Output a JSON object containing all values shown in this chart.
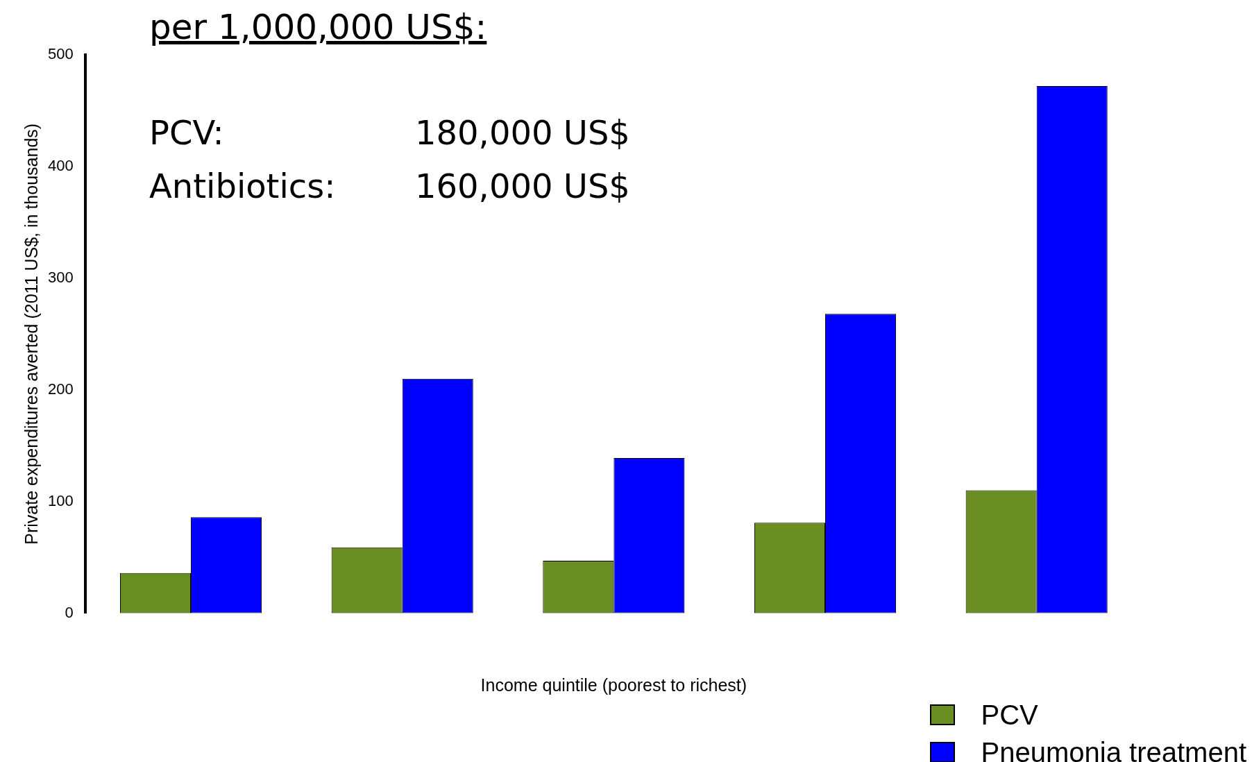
{
  "chart_data": {
    "type": "bar",
    "title": "per 1,000,000 US$:",
    "xlabel": "Income quintile (poorest to richest)",
    "ylabel": "Private expenditures averted (2011 US$, in thousands)",
    "categories": [
      null,
      null,
      null,
      null,
      null
    ],
    "series": [
      {
        "name": "PCV",
        "color": "#6b8e23",
        "values": [
          36,
          59,
          47,
          81,
          110
        ]
      },
      {
        "name": "Pneumonia treatment",
        "color": "#0000ff",
        "values": [
          86,
          210,
          139,
          268,
          472
        ]
      }
    ],
    "ylim": [
      0,
      500
    ],
    "yticks": [
      0,
      100,
      200,
      300,
      400,
      500
    ],
    "grid": false,
    "legend": "bottom right",
    "annotations": [
      "PCV:",
      "180,000 US$",
      "Antibiotics:",
      "160,000 US$"
    ]
  }
}
